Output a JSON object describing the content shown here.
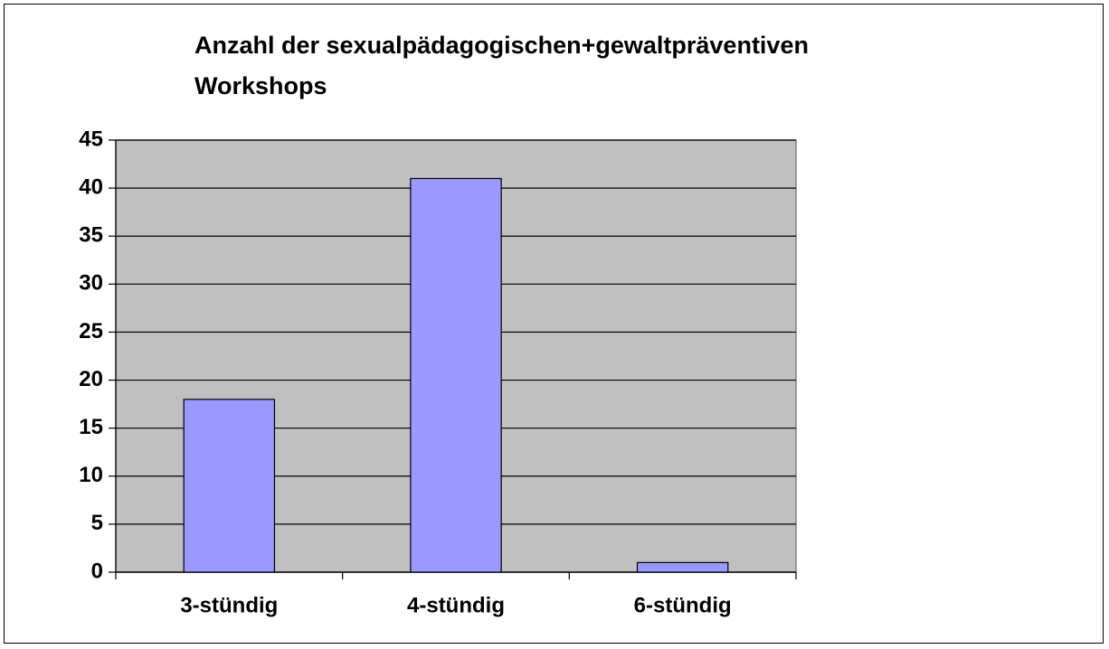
{
  "chart_data": {
    "type": "bar",
    "title": "Anzahl der sexualpädagogischen+gewaltpräventiven Workshops",
    "categories": [
      "3-stündig",
      "4-stündig",
      "6-stündig"
    ],
    "values": [
      18,
      41,
      1
    ],
    "color": "#9999ff",
    "ylim": [
      0,
      45
    ],
    "yticks": [
      0,
      5,
      10,
      15,
      20,
      25,
      30,
      35,
      40,
      45
    ],
    "grid": true
  }
}
